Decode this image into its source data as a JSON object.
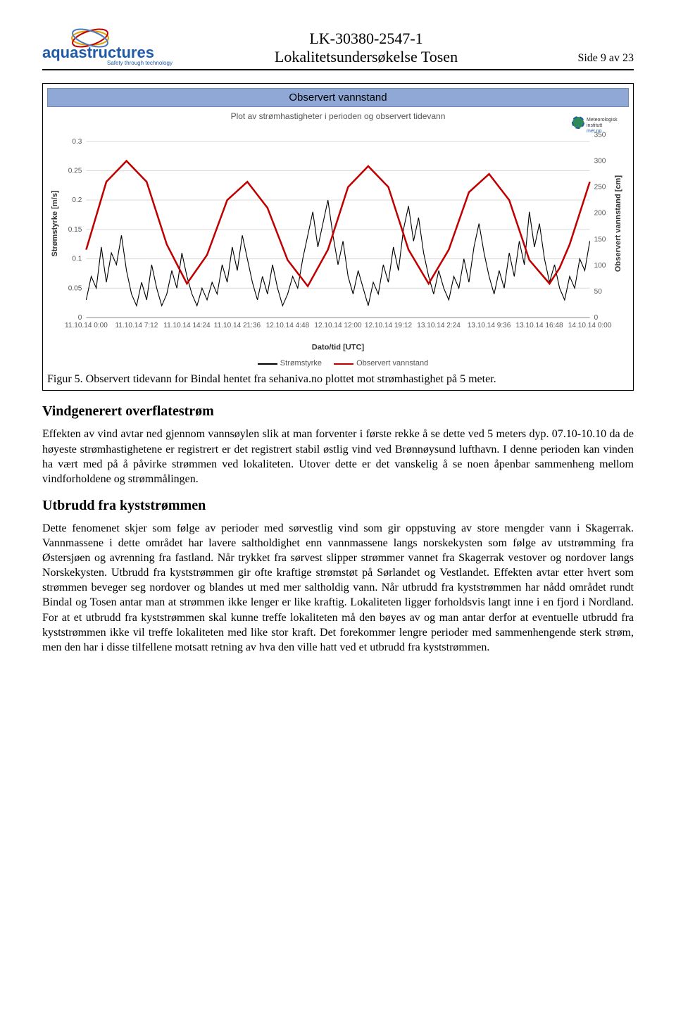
{
  "header": {
    "logo_main": "aquastructures",
    "logo_tag": "Safety through technology",
    "doc_id": "LK-30380-2547-1",
    "doc_title": "Lokalitetsundersøkelse Tosen",
    "page_label": "Side 9 av 23"
  },
  "met_logo": {
    "line1": "Meteorologisk",
    "line2": "institutt",
    "line3": "met.no"
  },
  "chart": {
    "bar_title": "Observert vannstand",
    "subtitle": "Plot av strømhastigheter i perioden og observert tidevann",
    "y_left_label": "Strømstyrke [m/s]",
    "y_right_label": "Observert vannstand [cm]",
    "x_label": "Dato/tid [UTC]",
    "y_left_ticks": [
      0,
      0.05,
      0.1,
      0.15,
      0.2,
      0.25,
      0.3
    ],
    "y_left_range": [
      0,
      0.32
    ],
    "y_right_ticks": [
      0,
      50,
      100,
      150,
      200,
      250,
      300,
      350
    ],
    "y_right_range": [
      0,
      360
    ],
    "x_ticks": [
      "11.10.14 0:00",
      "11.10.14 7:12",
      "11.10.14 14:24",
      "11.10.14 21:36",
      "12.10.14 4:48",
      "12.10.14 12:00",
      "12.10.14 19:12",
      "13.10.14 2:24",
      "13.10.14 9:36",
      "13.10.14 16:48",
      "14.10.14 0:00"
    ],
    "grid_color": "#d9d9d9",
    "background": "#ffffff",
    "series": {
      "vannstand": {
        "label": "Observert vannstand",
        "color": "#c00000",
        "width": 2.5,
        "axis": "right",
        "points": [
          [
            0,
            130
          ],
          [
            0.4,
            260
          ],
          [
            0.8,
            300
          ],
          [
            1.2,
            260
          ],
          [
            1.6,
            140
          ],
          [
            2.0,
            65
          ],
          [
            2.4,
            120
          ],
          [
            2.8,
            225
          ],
          [
            3.2,
            260
          ],
          [
            3.6,
            210
          ],
          [
            4.0,
            110
          ],
          [
            4.4,
            60
          ],
          [
            4.8,
            130
          ],
          [
            5.2,
            250
          ],
          [
            5.6,
            290
          ],
          [
            6.0,
            250
          ],
          [
            6.4,
            130
          ],
          [
            6.8,
            65
          ],
          [
            7.2,
            130
          ],
          [
            7.6,
            240
          ],
          [
            8.0,
            275
          ],
          [
            8.4,
            225
          ],
          [
            8.8,
            110
          ],
          [
            9.2,
            65
          ],
          [
            9.4,
            95
          ],
          [
            9.6,
            140
          ],
          [
            10.0,
            260
          ]
        ]
      },
      "strom": {
        "label": "Strømstyrke",
        "color": "#000000",
        "width": 1.1,
        "axis": "left",
        "points": [
          [
            0,
            0.03
          ],
          [
            0.1,
            0.07
          ],
          [
            0.2,
            0.05
          ],
          [
            0.3,
            0.12
          ],
          [
            0.4,
            0.06
          ],
          [
            0.5,
            0.11
          ],
          [
            0.6,
            0.09
          ],
          [
            0.7,
            0.14
          ],
          [
            0.8,
            0.08
          ],
          [
            0.9,
            0.04
          ],
          [
            1.0,
            0.02
          ],
          [
            1.1,
            0.06
          ],
          [
            1.2,
            0.03
          ],
          [
            1.3,
            0.09
          ],
          [
            1.4,
            0.05
          ],
          [
            1.5,
            0.02
          ],
          [
            1.6,
            0.04
          ],
          [
            1.7,
            0.08
          ],
          [
            1.8,
            0.05
          ],
          [
            1.9,
            0.11
          ],
          [
            2.0,
            0.07
          ],
          [
            2.1,
            0.04
          ],
          [
            2.2,
            0.02
          ],
          [
            2.3,
            0.05
          ],
          [
            2.4,
            0.03
          ],
          [
            2.5,
            0.06
          ],
          [
            2.6,
            0.04
          ],
          [
            2.7,
            0.09
          ],
          [
            2.8,
            0.06
          ],
          [
            2.9,
            0.12
          ],
          [
            3.0,
            0.08
          ],
          [
            3.1,
            0.14
          ],
          [
            3.2,
            0.1
          ],
          [
            3.3,
            0.06
          ],
          [
            3.4,
            0.03
          ],
          [
            3.5,
            0.07
          ],
          [
            3.6,
            0.04
          ],
          [
            3.7,
            0.09
          ],
          [
            3.8,
            0.05
          ],
          [
            3.9,
            0.02
          ],
          [
            4.0,
            0.04
          ],
          [
            4.1,
            0.07
          ],
          [
            4.2,
            0.05
          ],
          [
            4.3,
            0.1
          ],
          [
            4.4,
            0.14
          ],
          [
            4.5,
            0.18
          ],
          [
            4.6,
            0.12
          ],
          [
            4.7,
            0.16
          ],
          [
            4.8,
            0.2
          ],
          [
            4.9,
            0.14
          ],
          [
            5.0,
            0.09
          ],
          [
            5.1,
            0.13
          ],
          [
            5.2,
            0.07
          ],
          [
            5.3,
            0.04
          ],
          [
            5.4,
            0.08
          ],
          [
            5.5,
            0.05
          ],
          [
            5.6,
            0.02
          ],
          [
            5.7,
            0.06
          ],
          [
            5.8,
            0.04
          ],
          [
            5.9,
            0.09
          ],
          [
            6.0,
            0.06
          ],
          [
            6.1,
            0.12
          ],
          [
            6.2,
            0.08
          ],
          [
            6.3,
            0.15
          ],
          [
            6.4,
            0.19
          ],
          [
            6.5,
            0.13
          ],
          [
            6.6,
            0.17
          ],
          [
            6.7,
            0.11
          ],
          [
            6.8,
            0.07
          ],
          [
            6.9,
            0.04
          ],
          [
            7.0,
            0.08
          ],
          [
            7.1,
            0.05
          ],
          [
            7.2,
            0.03
          ],
          [
            7.3,
            0.07
          ],
          [
            7.4,
            0.05
          ],
          [
            7.5,
            0.1
          ],
          [
            7.6,
            0.06
          ],
          [
            7.7,
            0.12
          ],
          [
            7.8,
            0.16
          ],
          [
            7.9,
            0.11
          ],
          [
            8.0,
            0.07
          ],
          [
            8.1,
            0.04
          ],
          [
            8.2,
            0.08
          ],
          [
            8.3,
            0.05
          ],
          [
            8.4,
            0.11
          ],
          [
            8.5,
            0.07
          ],
          [
            8.6,
            0.13
          ],
          [
            8.7,
            0.09
          ],
          [
            8.8,
            0.18
          ],
          [
            8.9,
            0.12
          ],
          [
            9.0,
            0.16
          ],
          [
            9.1,
            0.1
          ],
          [
            9.2,
            0.06
          ],
          [
            9.3,
            0.09
          ],
          [
            9.4,
            0.05
          ],
          [
            9.5,
            0.03
          ],
          [
            9.6,
            0.07
          ],
          [
            9.7,
            0.05
          ],
          [
            9.8,
            0.1
          ],
          [
            9.9,
            0.08
          ],
          [
            10.0,
            0.13
          ]
        ]
      }
    },
    "legend_items": [
      "Strømstyrke",
      "Observert vannstand"
    ]
  },
  "caption": "Figur 5. Observert tidevann for Bindal hentet fra sehaniva.no plottet mot strømhastighet på 5 meter.",
  "section1_title": "Vindgenerert overflatestrøm",
  "section1_body": "Effekten av vind avtar ned gjennom vannsøylen slik at man forventer i første rekke å se dette ved 5 meters dyp. 07.10-10.10 da de høyeste strømhastighetene er registrert er det registrert stabil østlig vind ved Brønnøysund lufthavn. I denne perioden kan vinden ha vært med på å påvirke strømmen ved lokaliteten. Utover dette er det vanskelig å se noen åpenbar sammenheng mellom vindforholdene og strømmålingen.",
  "section2_title": "Utbrudd fra kyststrømmen",
  "section2_body": "Dette fenomenet skjer som følge av perioder med sørvestlig vind som gir oppstuving av store mengder vann i Skagerrak. Vannmassene i dette området har lavere saltholdighet enn vannmassene langs norskekysten som følge av utstrømming fra Østersjøen og avrenning fra fastland. Når trykket fra sørvest slipper strømmer vannet fra Skagerrak vestover og nordover langs Norskekysten. Utbrudd fra kyststrømmen gir ofte kraftige strømstøt på Sørlandet og Vestlandet.  Effekten avtar etter hvert som strømmen beveger seg nordover og blandes ut med mer saltholdig vann. Når utbrudd fra kyststrømmen har nådd området rundt Bindal og Tosen antar man at strømmen ikke lenger er like kraftig. Lokaliteten ligger forholdsvis langt inne i en fjord i Nordland. For at et utbrudd fra kyststrømmen skal kunne treffe lokaliteten må den bøyes av og man antar derfor at eventuelle utbrudd fra kyststrømmen ikke vil treffe lokaliteten med like stor kraft. Det forekommer lengre perioder med sammenhengende sterk strøm, men den har i disse tilfellene motsatt retning av hva den ville hatt ved et utbrudd fra kyststrømmen."
}
